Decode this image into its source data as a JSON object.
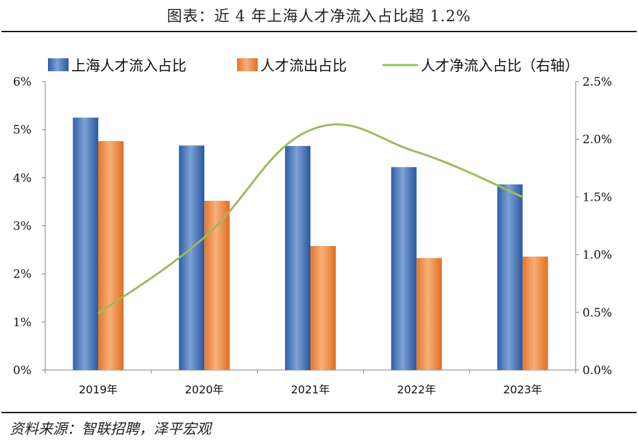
{
  "title": "图表：近 4 年上海人才净流入占比超 1.2%",
  "source": "资料来源：智联招聘，泽平宏观",
  "colors": {
    "inflow": "#3d6db8",
    "outflow": "#ef8a3a",
    "net": "#9bbb59"
  },
  "chart_data": {
    "type": "bar",
    "title": "图表：近 4 年上海人才净流入占比超 1.2%",
    "categories": [
      "2019年",
      "2020年",
      "2021年",
      "2022年",
      "2023年"
    ],
    "series": [
      {
        "name": "上海人才流入占比",
        "type": "bar",
        "axis": "left",
        "values": [
          5.25,
          4.67,
          4.66,
          4.22,
          3.86
        ]
      },
      {
        "name": "人才流出占比",
        "type": "bar",
        "axis": "left",
        "values": [
          4.76,
          3.52,
          2.58,
          2.33,
          2.36
        ]
      },
      {
        "name": "人才净流入占比（右轴）",
        "type": "line",
        "axis": "right",
        "values": [
          0.49,
          1.15,
          2.08,
          1.89,
          1.5
        ]
      }
    ],
    "y_left": {
      "min": 0,
      "max": 6,
      "ticks": [
        "0%",
        "1%",
        "2%",
        "3%",
        "4%",
        "5%",
        "6%"
      ]
    },
    "y_right": {
      "min": 0,
      "max": 2.5,
      "ticks": [
        "0.0%",
        "0.5%",
        "1.0%",
        "1.5%",
        "2.0%",
        "2.5%"
      ]
    },
    "legend": [
      "上海人才流入占比",
      "人才流出占比",
      "人才净流入占比（右轴）"
    ],
    "legend_position": "top"
  }
}
